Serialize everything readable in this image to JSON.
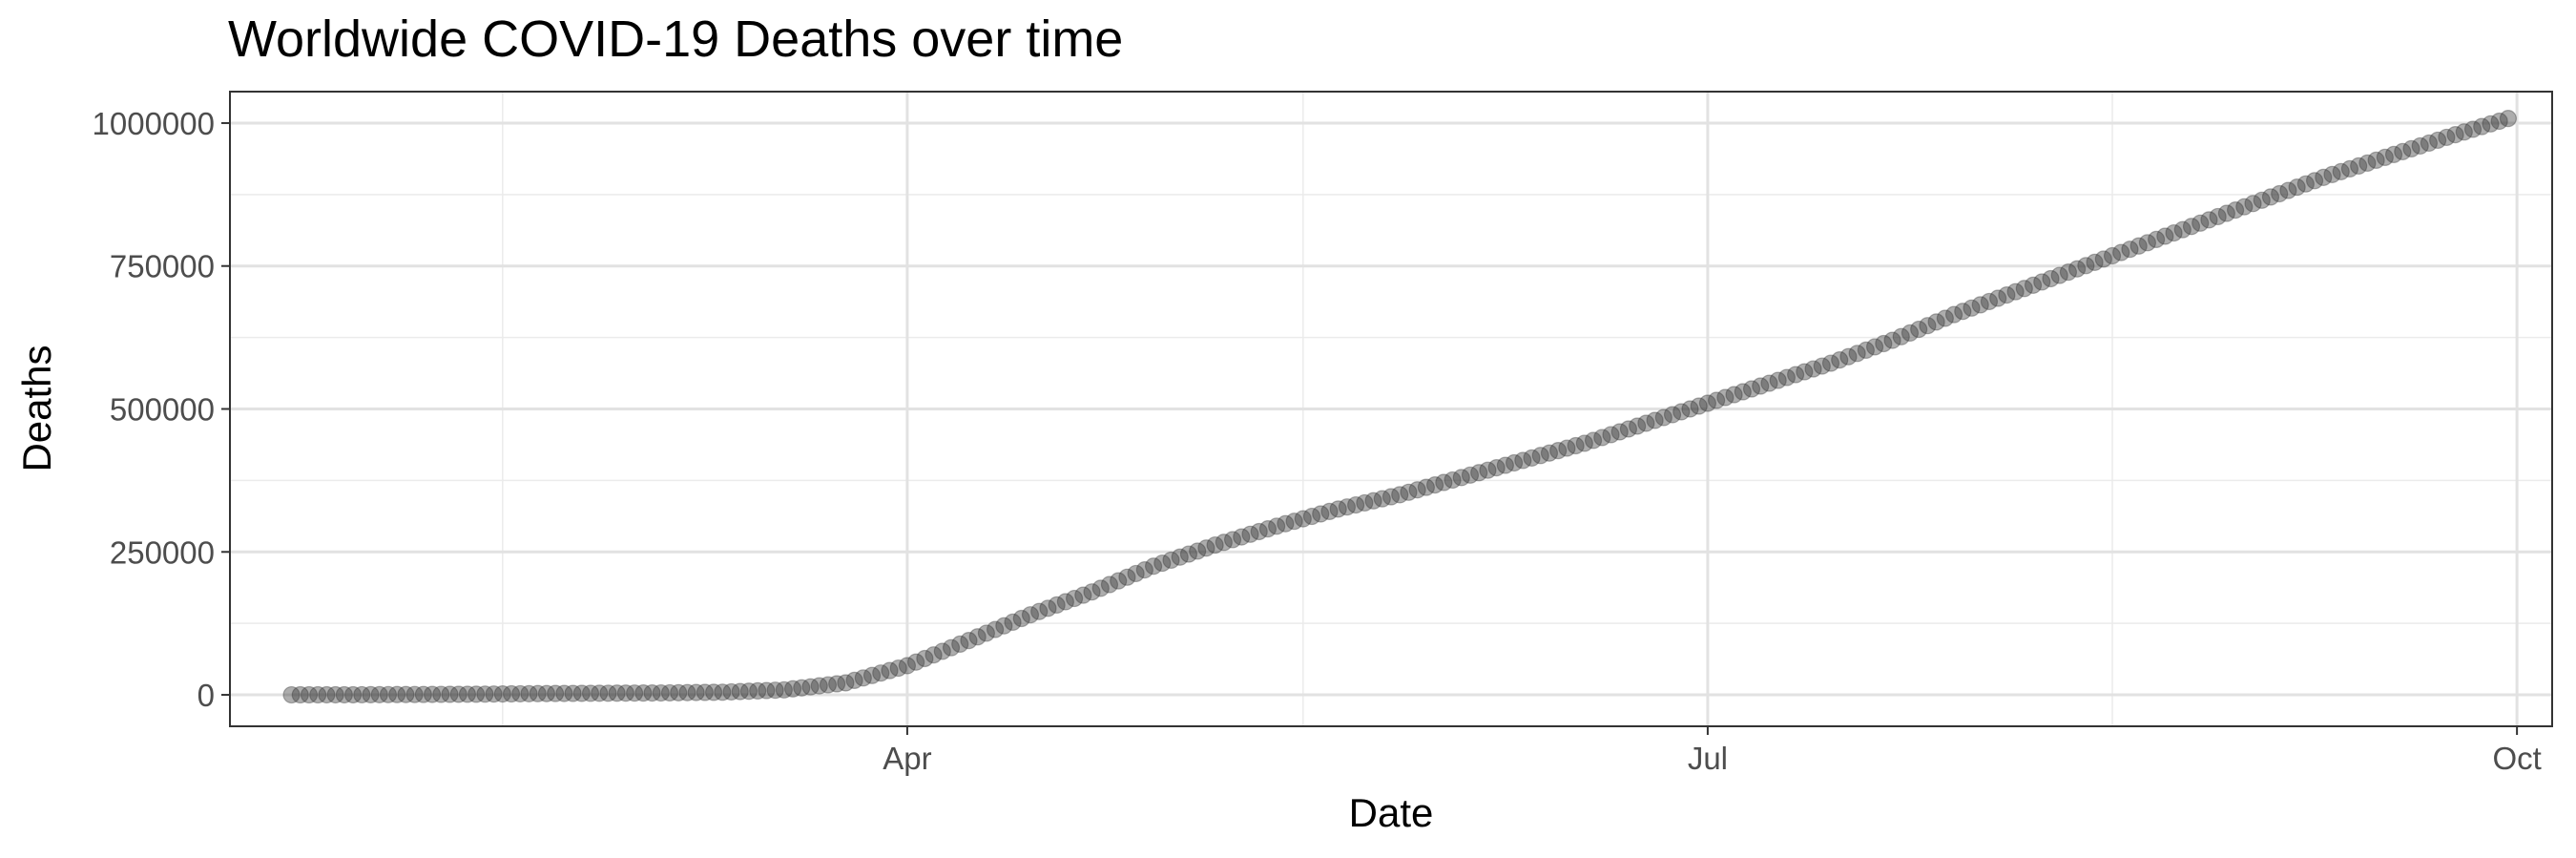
{
  "chart_data": {
    "type": "scatter",
    "title": "Worldwide COVID-19 Deaths over time",
    "xlabel": "Date",
    "ylabel": "Deaths",
    "x_range": [
      "2020-01-15",
      "2020-10-05"
    ],
    "ylim": [
      -55000,
      1055000
    ],
    "x_ticks": [
      {
        "date": "2020-04-01",
        "label": "Apr"
      },
      {
        "date": "2020-07-01",
        "label": "Jul"
      },
      {
        "date": "2020-10-01",
        "label": "Oct"
      }
    ],
    "x_minor_ticks": [
      "2020-02-15",
      "2020-05-16",
      "2020-08-16"
    ],
    "y_ticks": [
      {
        "value": 0,
        "label": "0"
      },
      {
        "value": 250000,
        "label": "250000"
      },
      {
        "value": 500000,
        "label": "500000"
      },
      {
        "value": 750000,
        "label": "750000"
      },
      {
        "value": 1000000,
        "label": "1000000"
      }
    ],
    "grid": true,
    "point_color": "#333333",
    "point_opacity": 0.4,
    "series": [
      {
        "x": [
          "2020-01-22",
          "2020-01-29",
          "2020-02-05",
          "2020-02-12",
          "2020-02-19",
          "2020-02-26",
          "2020-03-04",
          "2020-03-11",
          "2020-03-18",
          "2020-03-25",
          "2020-04-01",
          "2020-04-08",
          "2020-04-15",
          "2020-04-22",
          "2020-04-29",
          "2020-05-06",
          "2020-05-13",
          "2020-05-20",
          "2020-05-27",
          "2020-06-03",
          "2020-06-10",
          "2020-06-17",
          "2020-06-24",
          "2020-07-01",
          "2020-07-08",
          "2020-07-15",
          "2020-07-22",
          "2020-07-29",
          "2020-08-05",
          "2020-08-12",
          "2020-08-19",
          "2020-08-26",
          "2020-09-02",
          "2020-09-09",
          "2020-09-16",
          "2020-09-23",
          "2020-09-30"
        ],
        "y": [
          17,
          132,
          564,
          1118,
          2122,
          2800,
          3300,
          4600,
          8700,
          21000,
          51000,
          95000,
          140000,
          180000,
          225000,
          262000,
          295000,
          325000,
          350000,
          380000,
          410000,
          440000,
          475000,
          510000,
          545000,
          580000,
          620000,
          665000,
          705000,
          745000,
          785000,
          825000,
          865000,
          905000,
          940000,
          975000,
          1008000
        ]
      }
    ]
  }
}
